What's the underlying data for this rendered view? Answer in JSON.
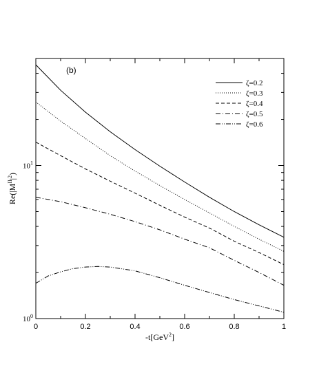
{
  "chart_data": {
    "type": "line",
    "panel_label": "(b)",
    "xlabel": "-t[GeV",
    "xlabel_sup": "2",
    "xlabel_close": "]",
    "ylabel": "Re(|M",
    "ylabel_sup": "II",
    "ylabel_close": "|",
    "ylabel_sup2": "2",
    "ylabel_end": ")",
    "xlim": [
      0,
      1
    ],
    "ylim": [
      1,
      50
    ],
    "yscale": "log",
    "grid": false,
    "legend_position": "top-right",
    "x_ticks": [
      {
        "value": 0,
        "label": "0"
      },
      {
        "value": 0.2,
        "label": "0.2"
      },
      {
        "value": 0.4,
        "label": "0.4"
      },
      {
        "value": 0.6,
        "label": "0.6"
      },
      {
        "value": 0.8,
        "label": "0.8"
      },
      {
        "value": 1.0,
        "label": "1"
      }
    ],
    "y_ticks": [
      {
        "value": 1,
        "base": "10",
        "exp": "0"
      },
      {
        "value": 10,
        "base": "10",
        "exp": "1"
      }
    ],
    "series": [
      {
        "name": "ζ=0.2",
        "dash": "solid",
        "x": [
          0,
          0.1,
          0.2,
          0.3,
          0.4,
          0.5,
          0.6,
          0.7,
          0.8,
          0.9,
          1.0
        ],
        "y": [
          45.5,
          31.0,
          22.3,
          16.6,
          12.7,
          9.9,
          7.8,
          6.2,
          5.0,
          4.1,
          3.4
        ]
      },
      {
        "name": "ζ=0.3",
        "dash": "dotted",
        "x": [
          0,
          0.1,
          0.2,
          0.3,
          0.4,
          0.5,
          0.6,
          0.7,
          0.8,
          0.9,
          1.0
        ],
        "y": [
          26.0,
          19.5,
          15.0,
          11.6,
          9.2,
          7.4,
          6.0,
          4.9,
          4.0,
          3.3,
          2.75
        ]
      },
      {
        "name": "ζ=0.4",
        "dash": "dashed",
        "x": [
          0,
          0.1,
          0.2,
          0.3,
          0.4,
          0.5,
          0.6,
          0.7,
          0.8,
          0.9,
          1.0
        ],
        "y": [
          14.2,
          11.6,
          9.5,
          7.9,
          6.6,
          5.5,
          4.6,
          3.9,
          3.2,
          2.7,
          2.25
        ]
      },
      {
        "name": "ζ=0.5",
        "dash": "dashdot",
        "x": [
          0,
          0.1,
          0.2,
          0.3,
          0.4,
          0.5,
          0.6,
          0.7,
          0.8,
          0.9,
          1.0
        ],
        "y": [
          6.2,
          5.8,
          5.3,
          4.8,
          4.3,
          3.8,
          3.3,
          2.9,
          2.4,
          2.0,
          1.65
        ]
      },
      {
        "name": "ζ=0.6",
        "dash": "dashdotdot",
        "x": [
          0,
          0.05,
          0.1,
          0.15,
          0.2,
          0.25,
          0.3,
          0.4,
          0.5,
          0.6,
          0.7,
          0.8,
          0.9,
          1.0
        ],
        "y": [
          1.7,
          1.9,
          2.02,
          2.12,
          2.17,
          2.19,
          2.17,
          2.05,
          1.85,
          1.65,
          1.48,
          1.33,
          1.21,
          1.1
        ]
      }
    ]
  }
}
